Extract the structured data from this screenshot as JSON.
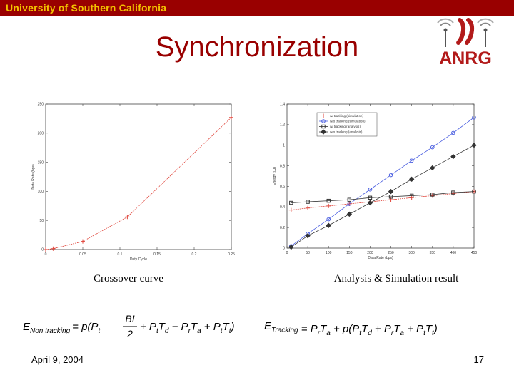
{
  "header": {
    "university": "University of Southern California",
    "bar_color": "#990000",
    "text_color": "#f3c200"
  },
  "slide": {
    "title": "Synchronization",
    "title_color": "#990000",
    "date": "April 9, 2004",
    "page_number": "17"
  },
  "logo": {
    "text": "ANRG",
    "icon": "wireless-antenna-icon"
  },
  "captions": {
    "left": "Crossover curve",
    "right": "Analysis & Simulation  result"
  },
  "chart_data": [
    {
      "type": "line",
      "title": "",
      "xlabel": "Duty Cycle",
      "ylabel": "Data Rate (bps)",
      "xlim": [
        0,
        0.25
      ],
      "ylim": [
        0,
        250
      ],
      "xticks": [
        0,
        0.05,
        0.1,
        0.15,
        0.2,
        0.25
      ],
      "xtick_labels": [
        "0",
        "0.05",
        "0.1",
        "0.15",
        "0.2",
        "0.25"
      ],
      "yticks": [
        0,
        50,
        100,
        150,
        200,
        250
      ],
      "ytick_labels": [
        "0",
        "50",
        "100",
        "150",
        "200",
        "250"
      ],
      "series": [
        {
          "color": "#e0463c",
          "marker": "plus",
          "x": [
            0,
            0.01,
            0.05,
            0.11,
            0.25
          ],
          "y": [
            0,
            1.5,
            14,
            56,
            227
          ]
        }
      ]
    },
    {
      "type": "line",
      "title": "",
      "xlabel": "Data Rate (bps)",
      "ylabel": "Energy (uJ)",
      "xlim": [
        0,
        450
      ],
      "ylim": [
        0,
        1.4
      ],
      "xticks": [
        0,
        50,
        100,
        150,
        200,
        250,
        300,
        350,
        400,
        450
      ],
      "xtick_labels": [
        "0",
        "50",
        "100",
        "150",
        "200",
        "250",
        "300",
        "350",
        "400",
        "450"
      ],
      "yticks": [
        0,
        0.2,
        0.4,
        0.6,
        0.8,
        1,
        1.2,
        1.4
      ],
      "ytick_labels": [
        "0",
        "0.2",
        "0.4",
        "0.6",
        "0.8",
        "1",
        "1.2",
        "1.4"
      ],
      "legend_position": "top-left",
      "series": [
        {
          "name": "w/ tracking (simulation)",
          "color": "#e0463c",
          "marker": "plus",
          "x": [
            10,
            50,
            100,
            150,
            200,
            250,
            300,
            350,
            400,
            450
          ],
          "y": [
            0.37,
            0.39,
            0.41,
            0.43,
            0.45,
            0.47,
            0.49,
            0.51,
            0.53,
            0.55
          ]
        },
        {
          "name": "w/o tracking (simulation)",
          "color": "#4a5ee0",
          "marker": "circle",
          "x": [
            10,
            50,
            100,
            150,
            200,
            250,
            300,
            350,
            400,
            450
          ],
          "y": [
            0.02,
            0.14,
            0.28,
            0.43,
            0.57,
            0.71,
            0.85,
            0.98,
            1.12,
            1.27
          ]
        },
        {
          "name": "w/ tracking (analysis)",
          "color": "#333333",
          "marker": "square",
          "x": [
            10,
            50,
            100,
            150,
            200,
            250,
            300,
            350,
            400,
            450
          ],
          "y": [
            0.44,
            0.45,
            0.46,
            0.47,
            0.49,
            0.5,
            0.51,
            0.52,
            0.54,
            0.55
          ]
        },
        {
          "name": "w/o tracking (analysis)",
          "color": "#333333",
          "marker": "diamond",
          "x": [
            10,
            50,
            100,
            150,
            200,
            250,
            300,
            350,
            400,
            450
          ],
          "y": [
            0.01,
            0.12,
            0.22,
            0.33,
            0.44,
            0.55,
            0.67,
            0.78,
            0.89,
            1.0
          ]
        }
      ]
    }
  ],
  "formulas": {
    "left": {
      "lhs_main": "E",
      "lhs_sub": "Non  tracking",
      "rhs_pre": "= p(P",
      "rhs_sub_t": "t",
      "fraction_num": "BI",
      "fraction_den": "2",
      "rhs_post": "+ P",
      "rhs_post_full": [
        "+ P",
        "t",
        "T",
        "d",
        " − P",
        "r",
        "T",
        "a",
        " + P",
        "t",
        "T",
        "t",
        ")"
      ]
    },
    "right": {
      "lhs_main": "E",
      "lhs_sub": "Tracking",
      "rhs_full": [
        "= P",
        "r",
        "T",
        "a",
        " + p(P",
        "t",
        "T",
        "d",
        " + P",
        "r",
        "T",
        "a",
        " + P",
        "t",
        "T",
        "t",
        ")"
      ]
    }
  }
}
